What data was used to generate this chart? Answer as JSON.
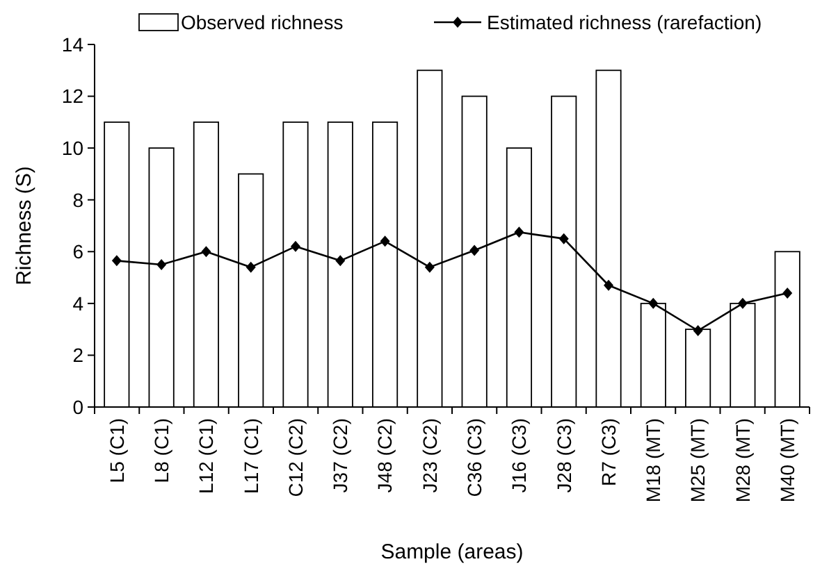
{
  "chart_data": {
    "type": "bar",
    "xlabel": "Sample (areas)",
    "ylabel": "Richness (S)",
    "categories": [
      "L5 (C1)",
      "L8 (C1)",
      "L12 (C1)",
      "L17 (C1)",
      "C12 (C2)",
      "J37 (C2)",
      "J48 (C2)",
      "J23 (C2)",
      "C36 (C3)",
      "J16 (C3)",
      "J28 (C3)",
      "R7 (C3)",
      "M18 (MT)",
      "M25 (MT)",
      "M28 (MT)",
      "M40 (MT)"
    ],
    "series": [
      {
        "name": "Observed richness",
        "color": "#ffffff",
        "values": [
          11,
          10,
          11,
          9,
          11,
          11,
          11,
          13,
          12,
          10,
          12,
          13,
          4,
          3,
          4,
          6
        ]
      },
      {
        "name": "Estimated richness (rarefaction)",
        "type": "line",
        "color": "#000000",
        "marker": "diamond",
        "values": [
          5.65,
          5.5,
          6.0,
          5.4,
          6.2,
          5.65,
          6.4,
          5.4,
          6.05,
          6.75,
          6.5,
          4.7,
          4.0,
          2.95,
          4.0,
          4.4
        ]
      }
    ],
    "ylim": [
      0,
      14
    ],
    "yticks": [
      0,
      2,
      4,
      6,
      8,
      10,
      12,
      14
    ],
    "grid": false,
    "legend": "top"
  }
}
